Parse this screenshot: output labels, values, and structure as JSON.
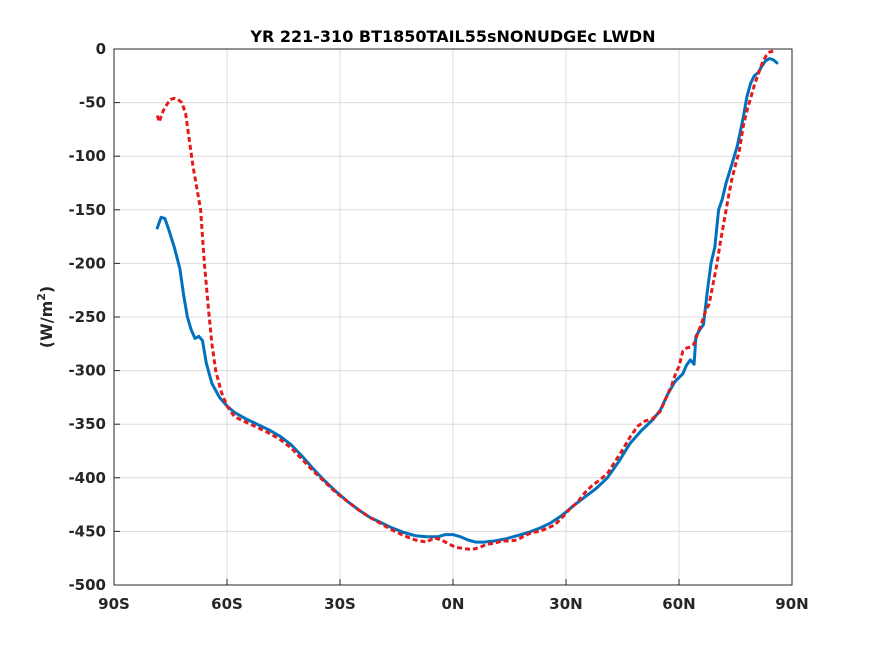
{
  "chart_data": {
    "type": "line",
    "title": "YR 221-310 BT1850TAIL55sNONUDGEc LWDN",
    "xlabel": "",
    "ylabel": "(W/m",
    "ylabel_superscript": "2",
    "ylabel_suffix": ")",
    "xlim": [
      -90,
      90
    ],
    "ylim": [
      -500,
      0
    ],
    "grid": true,
    "x_ticks": [
      {
        "value": -90,
        "label": "90S"
      },
      {
        "value": -60,
        "label": "60S"
      },
      {
        "value": -30,
        "label": "30S"
      },
      {
        "value": 0,
        "label": "0N"
      },
      {
        "value": 30,
        "label": "30N"
      },
      {
        "value": 60,
        "label": "60N"
      },
      {
        "value": 90,
        "label": "90N"
      }
    ],
    "y_ticks": [
      {
        "value": 0,
        "label": "0"
      },
      {
        "value": -50,
        "label": "-50"
      },
      {
        "value": -100,
        "label": "-100"
      },
      {
        "value": -150,
        "label": "-150"
      },
      {
        "value": -200,
        "label": "-200"
      },
      {
        "value": -250,
        "label": "-250"
      },
      {
        "value": -300,
        "label": "-300"
      },
      {
        "value": -350,
        "label": "-350"
      },
      {
        "value": -400,
        "label": "-400"
      },
      {
        "value": -450,
        "label": "-450"
      },
      {
        "value": -500,
        "label": "-500"
      }
    ],
    "series": [
      {
        "color": "#0072BD",
        "style": "solid",
        "points": [
          [
            -78.5,
            -167
          ],
          [
            -77.5,
            -157
          ],
          [
            -76.5,
            -158
          ],
          [
            -75.5,
            -168
          ],
          [
            -74,
            -185
          ],
          [
            -72.5,
            -205
          ],
          [
            -71.5,
            -230
          ],
          [
            -70.5,
            -250
          ],
          [
            -69.5,
            -262
          ],
          [
            -68.5,
            -270
          ],
          [
            -67.5,
            -268
          ],
          [
            -66.5,
            -272
          ],
          [
            -65.5,
            -293
          ],
          [
            -64,
            -312
          ],
          [
            -62,
            -325
          ],
          [
            -60,
            -333
          ],
          [
            -58,
            -339
          ],
          [
            -55,
            -345
          ],
          [
            -52,
            -350
          ],
          [
            -49,
            -355
          ],
          [
            -46,
            -361
          ],
          [
            -43,
            -369
          ],
          [
            -40,
            -380
          ],
          [
            -37,
            -392
          ],
          [
            -34,
            -403
          ],
          [
            -31,
            -413
          ],
          [
            -28,
            -422
          ],
          [
            -25,
            -430
          ],
          [
            -22,
            -437
          ],
          [
            -19,
            -442
          ],
          [
            -16,
            -447
          ],
          [
            -13,
            -451
          ],
          [
            -10,
            -454
          ],
          [
            -7,
            -455
          ],
          [
            -4,
            -455
          ],
          [
            -2,
            -453
          ],
          [
            0,
            -453
          ],
          [
            2,
            -455
          ],
          [
            4,
            -458
          ],
          [
            6,
            -460
          ],
          [
            8,
            -460
          ],
          [
            11,
            -459
          ],
          [
            14,
            -457
          ],
          [
            17,
            -454
          ],
          [
            20,
            -451
          ],
          [
            23,
            -447
          ],
          [
            26,
            -442
          ],
          [
            29,
            -435
          ],
          [
            32,
            -426
          ],
          [
            35,
            -418
          ],
          [
            38,
            -410
          ],
          [
            41,
            -400
          ],
          [
            44,
            -385
          ],
          [
            47,
            -368
          ],
          [
            50,
            -356
          ],
          [
            53,
            -346
          ],
          [
            55,
            -337
          ],
          [
            57,
            -322
          ],
          [
            59,
            -310
          ],
          [
            61,
            -303
          ],
          [
            62,
            -295
          ],
          [
            63,
            -290
          ],
          [
            64,
            -294
          ],
          [
            64.5,
            -268
          ],
          [
            65.5,
            -262
          ],
          [
            66.5,
            -257
          ],
          [
            67.5,
            -226
          ],
          [
            68.5,
            -200
          ],
          [
            69.5,
            -185
          ],
          [
            70.5,
            -150
          ],
          [
            71.5,
            -140
          ],
          [
            72.5,
            -125
          ],
          [
            74,
            -108
          ],
          [
            75.5,
            -90
          ],
          [
            77,
            -65
          ],
          [
            78,
            -45
          ],
          [
            79,
            -32
          ],
          [
            80,
            -25
          ],
          [
            81,
            -22
          ],
          [
            82,
            -16
          ],
          [
            83,
            -11
          ],
          [
            84,
            -9
          ],
          [
            85,
            -10
          ],
          [
            86,
            -13
          ]
        ]
      },
      {
        "color": "#E41A1C",
        "style": "dashed",
        "points": [
          [
            -78.5,
            -62
          ],
          [
            -78,
            -68
          ],
          [
            -77,
            -58
          ],
          [
            -76,
            -52
          ],
          [
            -75,
            -47
          ],
          [
            -74,
            -46
          ],
          [
            -73,
            -47
          ],
          [
            -72,
            -50
          ],
          [
            -71,
            -60
          ],
          [
            -70,
            -85
          ],
          [
            -69,
            -110
          ],
          [
            -68,
            -130
          ],
          [
            -67,
            -150
          ],
          [
            -66,
            -200
          ],
          [
            -65,
            -240
          ],
          [
            -64,
            -275
          ],
          [
            -63,
            -300
          ],
          [
            -61.5,
            -320
          ],
          [
            -60,
            -333
          ],
          [
            -58,
            -343
          ],
          [
            -55,
            -348
          ],
          [
            -52,
            -353
          ],
          [
            -49,
            -358
          ],
          [
            -46,
            -364
          ],
          [
            -43,
            -372
          ],
          [
            -40,
            -383
          ],
          [
            -37,
            -394
          ],
          [
            -34,
            -404
          ],
          [
            -31,
            -414
          ],
          [
            -28,
            -422
          ],
          [
            -25,
            -430
          ],
          [
            -22,
            -437
          ],
          [
            -19,
            -443
          ],
          [
            -16,
            -449
          ],
          [
            -13,
            -454
          ],
          [
            -10,
            -458
          ],
          [
            -7,
            -460
          ],
          [
            -5,
            -456
          ],
          [
            -3,
            -458
          ],
          [
            -1,
            -462
          ],
          [
            1,
            -465
          ],
          [
            3,
            -466
          ],
          [
            5,
            -467
          ],
          [
            7,
            -465
          ],
          [
            9,
            -462
          ],
          [
            11,
            -461
          ],
          [
            13,
            -459
          ],
          [
            15,
            -459
          ],
          [
            17,
            -458
          ],
          [
            19,
            -454
          ],
          [
            21,
            -451
          ],
          [
            23,
            -450
          ],
          [
            25,
            -447
          ],
          [
            27,
            -444
          ],
          [
            29,
            -437
          ],
          [
            31,
            -429
          ],
          [
            33,
            -423
          ],
          [
            35,
            -414
          ],
          [
            37,
            -407
          ],
          [
            39,
            -402
          ],
          [
            41,
            -396
          ],
          [
            43,
            -385
          ],
          [
            45,
            -374
          ],
          [
            47,
            -362
          ],
          [
            49,
            -352
          ],
          [
            51,
            -347
          ],
          [
            53,
            -345
          ],
          [
            55,
            -338
          ],
          [
            57,
            -322
          ],
          [
            58,
            -314
          ],
          [
            59,
            -304
          ],
          [
            60,
            -296
          ],
          [
            61,
            -282
          ],
          [
            62,
            -279
          ],
          [
            63,
            -278
          ],
          [
            64,
            -275
          ],
          [
            65,
            -265
          ],
          [
            66,
            -256
          ],
          [
            67,
            -245
          ],
          [
            68,
            -238
          ],
          [
            69,
            -220
          ],
          [
            70,
            -202
          ],
          [
            71,
            -180
          ],
          [
            72,
            -160
          ],
          [
            73,
            -140
          ],
          [
            74,
            -122
          ],
          [
            75,
            -108
          ],
          [
            76,
            -95
          ],
          [
            77,
            -73
          ],
          [
            78,
            -58
          ],
          [
            79,
            -46
          ],
          [
            80,
            -34
          ],
          [
            81,
            -24
          ],
          [
            82,
            -14
          ],
          [
            83,
            -7
          ],
          [
            84,
            -3
          ],
          [
            85,
            -2
          ]
        ]
      }
    ]
  }
}
